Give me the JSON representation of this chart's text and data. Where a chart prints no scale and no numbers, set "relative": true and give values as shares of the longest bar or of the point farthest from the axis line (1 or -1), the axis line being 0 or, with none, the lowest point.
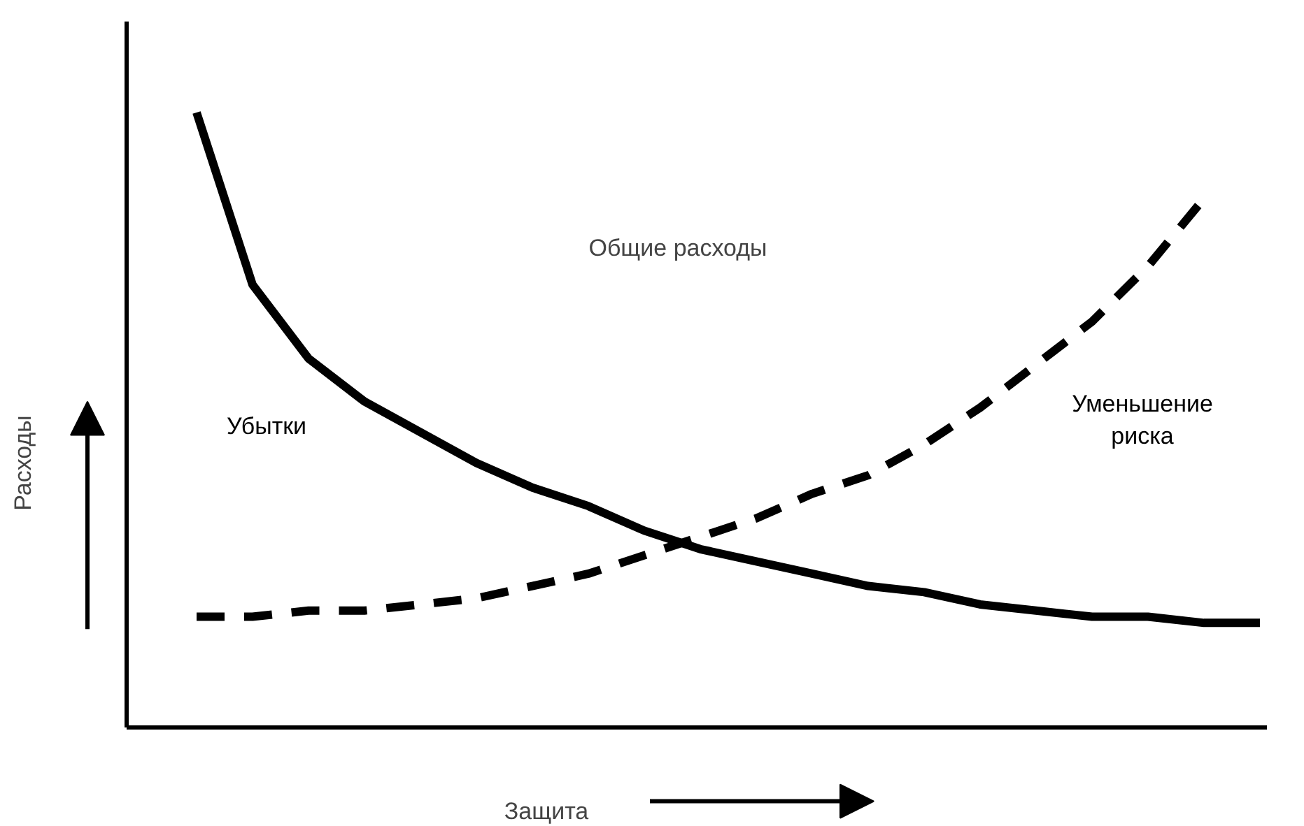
{
  "chart_data": {
    "type": "line",
    "relative": true,
    "xlabel": "Защита",
    "ylabel": "Расходы",
    "annotations": [
      "Общие расходы"
    ],
    "categories": [
      null,
      null,
      null,
      null,
      null,
      null,
      null,
      null,
      null,
      null,
      null,
      null,
      null,
      null,
      null,
      null,
      null,
      null,
      null,
      null
    ],
    "series": [
      {
        "name": "Убытки",
        "color": "#000000",
        "line_style": "solid",
        "values": [
          1.0,
          0.72,
          0.6,
          0.53,
          0.48,
          0.43,
          0.39,
          0.36,
          0.32,
          0.29,
          0.27,
          0.25,
          0.23,
          0.22,
          0.2,
          0.19,
          0.18,
          0.18,
          0.17,
          0.17
        ]
      },
      {
        "name": "Уменьшение риска",
        "color": "#000000",
        "line_style": "dashed",
        "values": [
          0.18,
          0.18,
          0.19,
          0.19,
          0.2,
          0.21,
          0.23,
          0.25,
          0.28,
          0.31,
          0.34,
          0.38,
          0.41,
          0.46,
          0.52,
          0.59,
          0.66,
          0.75,
          0.86,
          null
        ]
      }
    ],
    "marker": "none"
  }
}
